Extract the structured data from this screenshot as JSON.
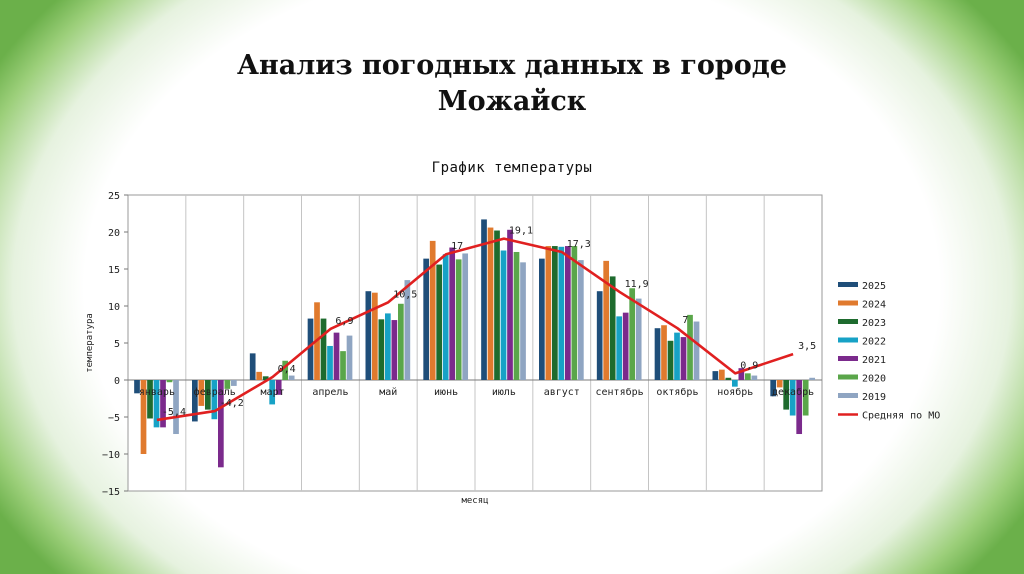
{
  "slide": {
    "title_line1": "Анализ погодных данных в городе",
    "title_line2": "Можайск"
  },
  "chart_data": {
    "type": "bar",
    "title": "График температуры",
    "xlabel": "месяц",
    "ylabel": "температура",
    "ylim": [
      -15,
      25
    ],
    "yticks": [
      "25",
      "20",
      "15",
      "10",
      "5",
      "0",
      "−5",
      "−10",
      "−15"
    ],
    "grid": true,
    "legend_position": "right",
    "categories": [
      "январь",
      "февраль",
      "март",
      "апрель",
      "май",
      "июнь",
      "июль",
      "август",
      "сентябрь",
      "октябрь",
      "ноябрь",
      "декабрь"
    ],
    "series": [
      {
        "name": "2025",
        "color": "#1f4e79",
        "values": [
          -1.8,
          -5.6,
          3.6,
          8.3,
          12.0,
          16.4,
          21.7,
          16.4,
          12.0,
          7.0,
          1.2,
          -2.2
        ]
      },
      {
        "name": "2024",
        "color": "#e07a2e",
        "values": [
          -10.0,
          -3.5,
          1.1,
          10.5,
          11.8,
          18.8,
          20.6,
          18.1,
          16.1,
          7.4,
          1.4,
          -1.0
        ]
      },
      {
        "name": "2023",
        "color": "#1e6b2e",
        "values": [
          -5.2,
          -4.0,
          0.5,
          8.3,
          8.2,
          15.6,
          20.2,
          18.1,
          14.0,
          5.3,
          0.3,
          -4.0
        ]
      },
      {
        "name": "2022",
        "color": "#17a2c6",
        "values": [
          -6.4,
          -5.3,
          -3.3,
          4.6,
          9.0,
          17.0,
          17.5,
          18.0,
          8.6,
          6.4,
          -0.9,
          -4.8
        ]
      },
      {
        "name": "2021",
        "color": "#7b2a8c",
        "values": [
          -6.4,
          -11.8,
          -2.0,
          6.4,
          8.1,
          17.9,
          20.3,
          18.1,
          9.1,
          5.8,
          1.6,
          -7.3
        ]
      },
      {
        "name": "2020",
        "color": "#5aa64a",
        "values": [
          -0.3,
          -1.2,
          2.6,
          3.9,
          10.3,
          16.3,
          17.3,
          18.1,
          12.4,
          8.8,
          0.9,
          -4.8
        ]
      },
      {
        "name": "2019",
        "color": "#8fa5c2",
        "values": [
          -7.3,
          -0.8,
          0.6,
          6.0,
          13.5,
          17.1,
          15.9,
          16.2,
          11.0,
          7.9,
          0.6,
          0.3
        ]
      }
    ],
    "average": {
      "name": "Средняя по МО",
      "color": "#e02020",
      "values": [
        -5.4,
        -4.2,
        0.4,
        6.9,
        10.5,
        17,
        19.1,
        17.3,
        11.9,
        7,
        0.9,
        3.5
      ],
      "labels": [
        "-5,4",
        "-4,2",
        "0,4",
        "6,9",
        "10,5",
        "17",
        "19,1",
        "17,3",
        "11,9",
        "7",
        "0,9",
        "3,5"
      ]
    }
  }
}
